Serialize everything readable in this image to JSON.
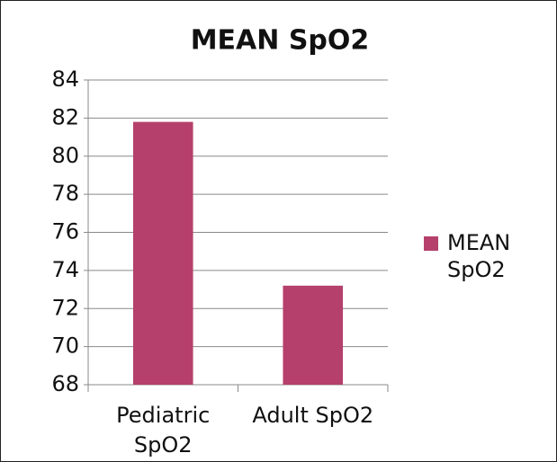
{
  "chart_data": {
    "type": "bar",
    "title": "MEAN SpO2",
    "categories": [
      "Pediatric SpO2",
      "Adult SpO2"
    ],
    "series": [
      {
        "name": "MEAN SpO2",
        "color": "#b5406b",
        "values": [
          81.8,
          73.2
        ]
      }
    ],
    "ylim": [
      68,
      84
    ],
    "yticks": [
      68,
      70,
      72,
      74,
      76,
      78,
      80,
      82,
      84
    ],
    "grid": true,
    "legend": "right"
  }
}
